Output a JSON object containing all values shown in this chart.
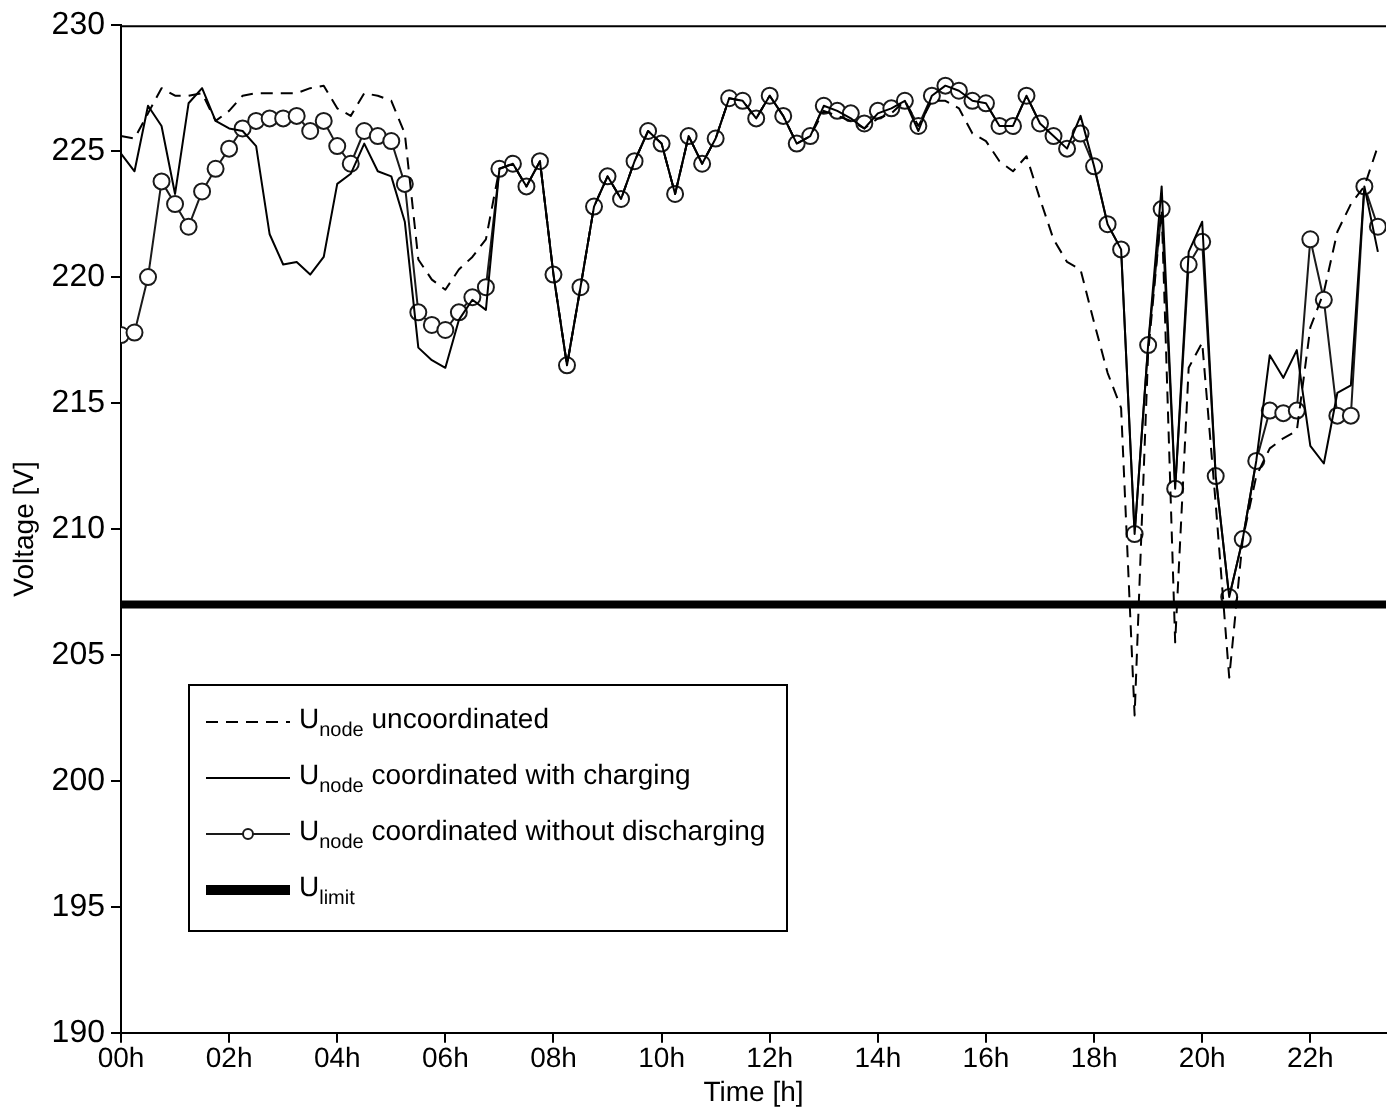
{
  "chart_data": {
    "type": "line",
    "xlabel": "Time [h]",
    "ylabel": "Voltage [V]",
    "xlim": [
      0,
      23.4
    ],
    "ylim": [
      190,
      230
    ],
    "xticks": [
      {
        "value": 0,
        "label": "00h"
      },
      {
        "value": 2,
        "label": "02h"
      },
      {
        "value": 4,
        "label": "04h"
      },
      {
        "value": 6,
        "label": "06h"
      },
      {
        "value": 8,
        "label": "08h"
      },
      {
        "value": 10,
        "label": "10h"
      },
      {
        "value": 12,
        "label": "12h"
      },
      {
        "value": 14,
        "label": "14h"
      },
      {
        "value": 16,
        "label": "16h"
      },
      {
        "value": 18,
        "label": "18h"
      },
      {
        "value": 20,
        "label": "20h"
      },
      {
        "value": 22,
        "label": "22h"
      }
    ],
    "yticks": [
      190,
      195,
      200,
      205,
      210,
      215,
      220,
      225,
      230
    ],
    "x": [
      0,
      0.25,
      0.5,
      0.75,
      1,
      1.25,
      1.5,
      1.75,
      2,
      2.25,
      2.5,
      2.75,
      3,
      3.25,
      3.5,
      3.75,
      4,
      4.25,
      4.5,
      4.75,
      5,
      5.25,
      5.5,
      5.75,
      6,
      6.25,
      6.5,
      6.75,
      7,
      7.25,
      7.5,
      7.75,
      8,
      8.25,
      8.5,
      8.75,
      9,
      9.25,
      9.5,
      9.75,
      10,
      10.25,
      10.5,
      10.75,
      11,
      11.25,
      11.5,
      11.75,
      12,
      12.25,
      12.5,
      12.75,
      13,
      13.25,
      13.5,
      13.75,
      14,
      14.25,
      14.5,
      14.75,
      15,
      15.25,
      15.5,
      15.75,
      16,
      16.25,
      16.5,
      16.75,
      17,
      17.25,
      17.5,
      17.75,
      18,
      18.25,
      18.5,
      18.75,
      19,
      19.25,
      19.5,
      19.75,
      20,
      20.25,
      20.5,
      20.75,
      21,
      21.25,
      21.5,
      21.75,
      22,
      22.25,
      22.5,
      22.75,
      23,
      23.25
    ],
    "series": [
      {
        "name": "U$_{node}$ uncoordinated",
        "color": "#000000",
        "line_style": "dashed",
        "marker": "none",
        "values": [
          225.6,
          225.5,
          226.5,
          227.5,
          227.2,
          227.2,
          227.3,
          226.2,
          226.6,
          227.2,
          227.3,
          227.3,
          227.3,
          227.3,
          227.5,
          227.6,
          226.7,
          226.4,
          227.3,
          227.2,
          227.0,
          225.7,
          220.7,
          219.9,
          219.5,
          220.3,
          220.8,
          221.5,
          224.3,
          224.5,
          223.6,
          224.6,
          220.1,
          216.5,
          219.6,
          222.8,
          224.0,
          223.1,
          224.6,
          225.8,
          225.3,
          223.3,
          225.6,
          224.5,
          225.5,
          227.1,
          227.0,
          226.3,
          227.2,
          226.4,
          225.3,
          225.6,
          226.6,
          226.4,
          226.2,
          225.9,
          226.3,
          226.5,
          227.0,
          226.0,
          227.0,
          227.0,
          226.7,
          225.7,
          225.4,
          224.6,
          224.2,
          224.8,
          223.1,
          221.5,
          220.6,
          220.3,
          218.2,
          216.2,
          214.8,
          202.6,
          217.0,
          222.7,
          205.5,
          216.4,
          217.4,
          211.0,
          204.1,
          209.6,
          212.1,
          213.2,
          213.6,
          213.9,
          218.0,
          219.4,
          221.8,
          222.9,
          223.6,
          225.2
        ]
      },
      {
        "name": "U$_{node}$ coordinated with charging",
        "color": "#000000",
        "line_style": "solid",
        "marker": "none",
        "values": [
          224.9,
          224.2,
          226.8,
          226.0,
          223.3,
          226.9,
          227.5,
          226.2,
          225.9,
          225.8,
          225.2,
          221.7,
          220.5,
          220.6,
          220.1,
          220.8,
          223.7,
          224.1,
          225.3,
          224.2,
          224.0,
          222.2,
          217.2,
          216.7,
          216.4,
          218.3,
          219.1,
          218.7,
          224.3,
          224.5,
          223.6,
          224.6,
          220.1,
          216.5,
          219.6,
          222.8,
          224.0,
          223.1,
          224.6,
          225.8,
          225.3,
          223.3,
          225.6,
          224.5,
          225.5,
          227.1,
          227.0,
          226.3,
          227.2,
          226.4,
          225.3,
          225.6,
          226.8,
          226.6,
          226.3,
          225.9,
          226.5,
          226.7,
          227.0,
          225.8,
          227.2,
          227.6,
          227.4,
          227.0,
          226.9,
          226.0,
          226.0,
          227.2,
          226.1,
          225.6,
          225.1,
          226.4,
          224.4,
          222.1,
          221.1,
          209.8,
          217.3,
          223.6,
          211.6,
          221.0,
          222.2,
          212.1,
          207.3,
          209.6,
          212.7,
          216.9,
          216.0,
          217.1,
          213.3,
          212.6,
          215.4,
          215.7,
          223.6,
          221.0
        ]
      },
      {
        "name": "U$_{node}$ coordinated without discharging",
        "color": "#1a1a1a",
        "line_style": "solid",
        "marker": "circle",
        "values": [
          217.7,
          217.8,
          220.0,
          223.8,
          222.9,
          222.0,
          223.4,
          224.3,
          225.1,
          225.9,
          226.2,
          226.3,
          226.3,
          226.4,
          225.8,
          226.2,
          225.2,
          224.5,
          225.8,
          225.6,
          225.4,
          223.7,
          218.6,
          218.1,
          217.9,
          218.6,
          219.2,
          219.6,
          224.3,
          224.5,
          223.6,
          224.6,
          220.1,
          216.5,
          219.6,
          222.8,
          224.0,
          223.1,
          224.6,
          225.8,
          225.3,
          223.3,
          225.6,
          224.5,
          225.5,
          227.1,
          227.0,
          226.3,
          227.2,
          226.4,
          225.3,
          225.6,
          226.8,
          226.6,
          226.5,
          226.1,
          226.6,
          226.7,
          227.0,
          226.0,
          227.2,
          227.6,
          227.4,
          227.0,
          226.9,
          226.0,
          226.0,
          227.2,
          226.1,
          225.6,
          225.1,
          225.7,
          224.4,
          222.1,
          221.1,
          209.8,
          217.3,
          222.7,
          211.6,
          220.5,
          221.4,
          212.1,
          207.3,
          209.6,
          212.7,
          214.7,
          214.6,
          214.7,
          221.5,
          219.1,
          214.5,
          214.5,
          223.6,
          222.0
        ]
      }
    ],
    "ref_lines": [
      {
        "axis": "y",
        "value": 207,
        "label": "U$_{limit}$",
        "color": "#000000"
      }
    ],
    "legend": "bottom left",
    "grid": false
  }
}
